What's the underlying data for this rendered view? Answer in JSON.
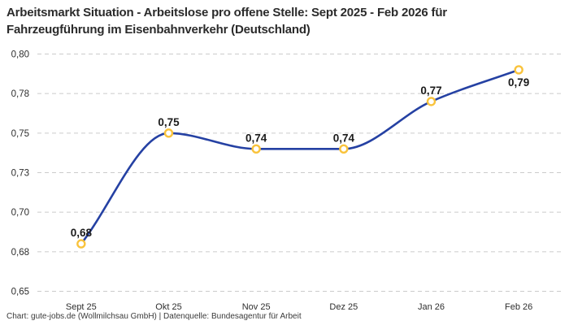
{
  "title": "Arbeitsmarkt Situation - Arbeitslose pro offene Stelle: Sept 2025 - Feb 2026 für Fahrzeugführung im Eisenbahnverkehr (Deutschland)",
  "footer": "Chart: gute-jobs.de (Wollmilchsau GmbH) | Datenquelle: Bundesagentur für Arbeit",
  "chart_data": {
    "type": "line",
    "title": "Arbeitsmarkt Situation - Arbeitslose pro offene Stelle: Sept 2025 - Feb 2026 für Fahrzeugführung im Eisenbahnverkehr (Deutschland)",
    "categories": [
      "Sept 25",
      "Okt 25",
      "Nov 25",
      "Dez 25",
      "Jan 26",
      "Feb 26"
    ],
    "values": [
      0.68,
      0.75,
      0.74,
      0.74,
      0.77,
      0.79
    ],
    "point_labels": [
      "0,68",
      "0,75",
      "0,74",
      "0,74",
      "0,77",
      "0,79"
    ],
    "point_label_positions": [
      "above",
      "above",
      "above",
      "above",
      "above",
      "below"
    ],
    "xlabel": "",
    "ylabel": "",
    "ylim": [
      0.65,
      0.8
    ],
    "y_ticks": [
      0.8,
      0.775,
      0.75,
      0.725,
      0.7,
      0.675,
      0.65
    ],
    "y_tick_labels": [
      "0,80",
      "0,78",
      "0,75",
      "0,73",
      "0,70",
      "0,68",
      "0,65"
    ],
    "grid": "horizontal-dashed",
    "legend": "none",
    "curve": "smooth-monotone",
    "colors": {
      "line": "#2541a3",
      "marker_ring": "#f9c33c",
      "marker_fill": "#ffffff",
      "gridline": "#cbcbcb",
      "tick_text": "#2e2e2e",
      "point_label_text": "#1b1b1b",
      "title_text": "#2b2b2b",
      "footer_text": "#3a3a3a",
      "background": "#ffffff"
    }
  }
}
